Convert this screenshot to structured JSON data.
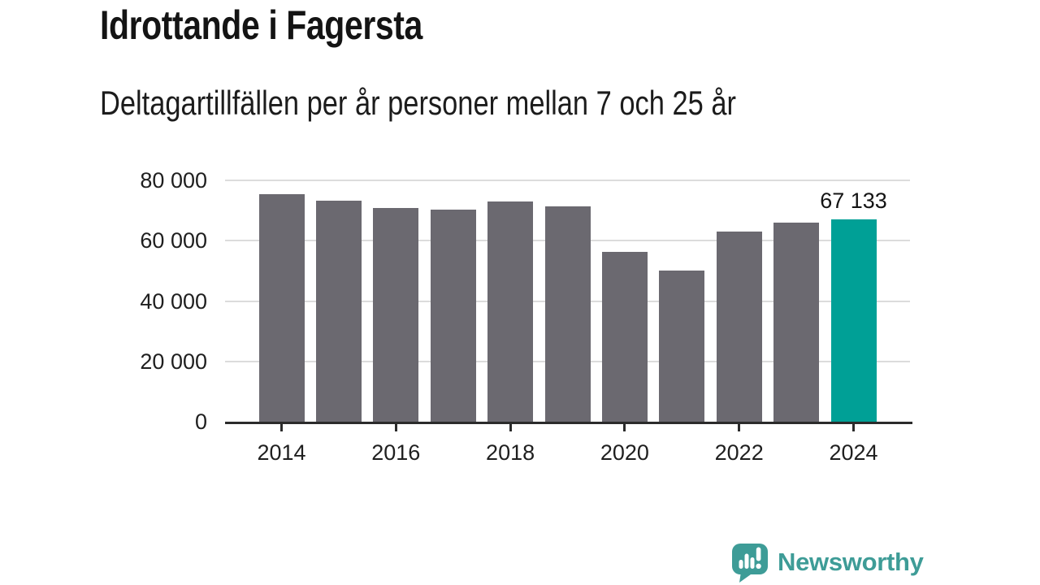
{
  "header": {
    "title": "Idrottande i Fagersta",
    "subtitle": "Deltagartillfällen per år personer mellan 7 och 25 år"
  },
  "chart_data": {
    "type": "bar",
    "title": "Idrottande i Fagersta",
    "subtitle": "Deltagartillfällen per år personer mellan 7 och 25 år",
    "categories": [
      "2014",
      "2015",
      "2016",
      "2017",
      "2018",
      "2019",
      "2020",
      "2021",
      "2022",
      "2023",
      "2024"
    ],
    "values": [
      75400,
      73400,
      70900,
      70400,
      73000,
      71400,
      56200,
      50200,
      63100,
      65900,
      67133
    ],
    "highlight_index": 10,
    "value_label": {
      "index": 10,
      "text": "67 133"
    },
    "ylim": [
      0,
      80000
    ],
    "yticks": [
      {
        "value": 0,
        "label": "0"
      },
      {
        "value": 20000,
        "label": "20 000"
      },
      {
        "value": 40000,
        "label": "40 000"
      },
      {
        "value": 60000,
        "label": "60 000"
      },
      {
        "value": 80000,
        "label": "80 000"
      }
    ],
    "xticks": [
      {
        "index": 0,
        "label": "2014"
      },
      {
        "index": 2,
        "label": "2016"
      },
      {
        "index": 4,
        "label": "2018"
      },
      {
        "index": 6,
        "label": "2020"
      },
      {
        "index": 8,
        "label": "2022"
      },
      {
        "index": 10,
        "label": "2024"
      }
    ],
    "grid": true,
    "legend": "none",
    "bar_color": "#6B6970",
    "highlight_color": "#00A096",
    "grid_color": "#dcdcdc",
    "axis_color": "#2b2b2b"
  },
  "logo": {
    "text": "Newsworthy",
    "color": "#3E9C97"
  }
}
